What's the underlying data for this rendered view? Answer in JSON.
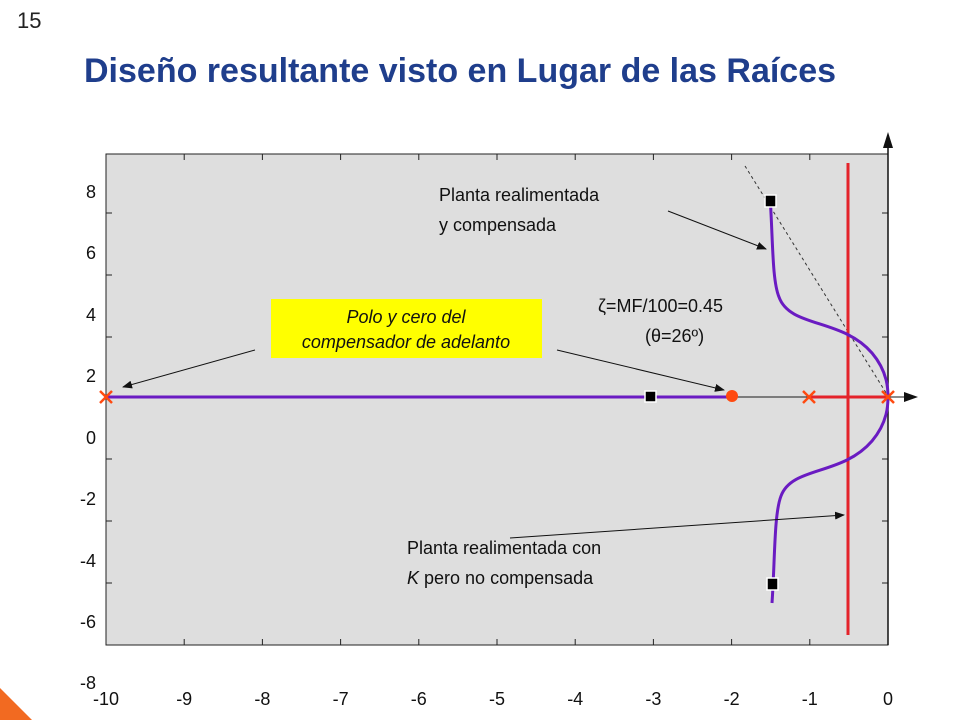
{
  "slide_number": "15",
  "title": "Diseño resultante visto en Lugar de las Raíces",
  "annotations": {
    "compensated": [
      "Planta realimentada",
      "y compensada"
    ],
    "damping": "ζ=MF/100=0.45",
    "angle": "(θ=26º)",
    "lead_comp": [
      "Polo y cero del",
      "compensador de adelanto"
    ],
    "uncompensated_line1": "Planta realimentada con",
    "uncompensated_line2_italic": "K",
    "uncompensated_line2_rest": " pero no compensada"
  },
  "chart_data": {
    "type": "root-locus",
    "xlim": [
      -10,
      0
    ],
    "ylim": [
      -8,
      8
    ],
    "x_ticks": [
      "-10",
      "-9",
      "-8",
      "-7",
      "-6",
      "-5",
      "-4",
      "-3",
      "-2",
      "-1",
      "0"
    ],
    "y_ticks": [
      "8",
      "6",
      "4",
      "2",
      "0",
      "-2",
      "-4",
      "-6",
      "-8"
    ],
    "open_loop_poles": [
      [
        -10,
        0
      ],
      [
        -1.03,
        0
      ],
      [
        0,
        0
      ]
    ],
    "compensator_zero": [
      -2,
      0
    ],
    "closed_loop_poles": [
      [
        -3,
        0
      ],
      [
        -1.5,
        6.55
      ],
      [
        -1.5,
        -6.55
      ]
    ],
    "colors": {
      "compensated_locus": "#6a1bc2",
      "uncompensated_locus": "#e4232a",
      "pole_marker": "#ff4a10",
      "zero_marker": "#ff4a10",
      "plot_bg": "#dedede",
      "title": "#1f3e8c",
      "callout_bg": "#ffff00"
    }
  }
}
